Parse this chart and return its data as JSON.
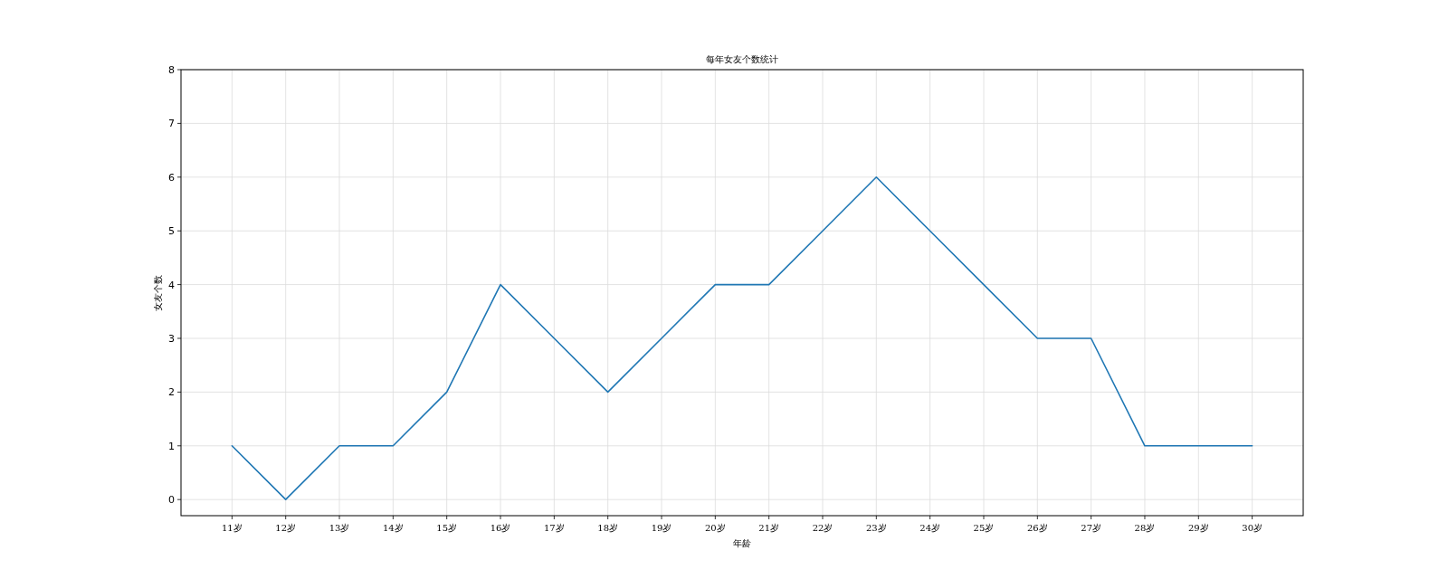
{
  "chart_data": {
    "type": "line",
    "title": "每年女友个数统计",
    "xlabel": "年龄",
    "ylabel": "女友个数",
    "categories": [
      "11岁",
      "12岁",
      "13岁",
      "14岁",
      "15岁",
      "16岁",
      "17岁",
      "18岁",
      "19岁",
      "20岁",
      "21岁",
      "22岁",
      "23岁",
      "24岁",
      "25岁",
      "26岁",
      "27岁",
      "28岁",
      "29岁",
      "30岁"
    ],
    "series": [
      {
        "color": "#1f77b4",
        "values": [
          1,
          0,
          1,
          1,
          2,
          4,
          3,
          2,
          3,
          4,
          4,
          5,
          6,
          5,
          4,
          3,
          3,
          1,
          1,
          1
        ]
      }
    ],
    "ylim": [
      -0.3,
      8
    ],
    "yticks": [
      0,
      1,
      2,
      3,
      4,
      5,
      6,
      7,
      8
    ],
    "grid": true
  }
}
